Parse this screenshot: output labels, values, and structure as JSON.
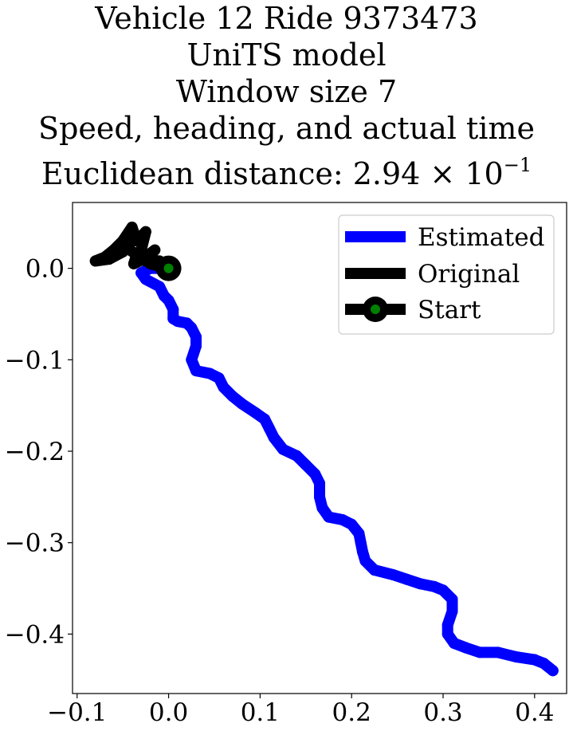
{
  "title": {
    "line1": "Vehicle 12 Ride 9373473",
    "line2": "UniTS model",
    "line3": "Window size 7",
    "line4": "Speed, heading, and actual time",
    "line5_prefix": "Euclidean distance: 2.94 × 10",
    "line5_exponent": "−1"
  },
  "chart_data": {
    "type": "line",
    "xlim": [
      -0.105,
      0.435
    ],
    "ylim": [
      -0.465,
      0.072
    ],
    "xticks": [
      -0.1,
      0.0,
      0.1,
      0.2,
      0.3,
      0.4
    ],
    "xtick_labels": [
      "−0.1",
      "0.0",
      "0.1",
      "0.2",
      "0.3",
      "0.4"
    ],
    "yticks": [
      0.0,
      -0.1,
      -0.2,
      -0.3,
      -0.4
    ],
    "ytick_labels": [
      "0.0",
      "−0.1",
      "−0.2",
      "−0.3",
      "−0.4"
    ],
    "grid": false,
    "legend_placement": "top-right",
    "series": [
      {
        "name": "Estimated",
        "color": "#0000ff",
        "points": [
          [
            0.0,
            0.0
          ],
          [
            -0.02,
            0.0
          ],
          [
            -0.03,
            -0.005
          ],
          [
            -0.025,
            -0.012
          ],
          [
            -0.01,
            -0.02
          ],
          [
            -0.005,
            -0.03
          ],
          [
            0.0,
            -0.035
          ],
          [
            0.005,
            -0.045
          ],
          [
            0.005,
            -0.055
          ],
          [
            0.01,
            -0.058
          ],
          [
            0.02,
            -0.06
          ],
          [
            0.025,
            -0.065
          ],
          [
            0.03,
            -0.075
          ],
          [
            0.03,
            -0.085
          ],
          [
            0.025,
            -0.1
          ],
          [
            0.03,
            -0.112
          ],
          [
            0.045,
            -0.115
          ],
          [
            0.055,
            -0.12
          ],
          [
            0.06,
            -0.13
          ],
          [
            0.07,
            -0.14
          ],
          [
            0.08,
            -0.148
          ],
          [
            0.095,
            -0.158
          ],
          [
            0.105,
            -0.165
          ],
          [
            0.11,
            -0.175
          ],
          [
            0.115,
            -0.185
          ],
          [
            0.125,
            -0.198
          ],
          [
            0.14,
            -0.205
          ],
          [
            0.15,
            -0.215
          ],
          [
            0.16,
            -0.225
          ],
          [
            0.165,
            -0.235
          ],
          [
            0.165,
            -0.25
          ],
          [
            0.168,
            -0.262
          ],
          [
            0.175,
            -0.272
          ],
          [
            0.19,
            -0.275
          ],
          [
            0.2,
            -0.28
          ],
          [
            0.208,
            -0.29
          ],
          [
            0.21,
            -0.3
          ],
          [
            0.212,
            -0.31
          ],
          [
            0.215,
            -0.32
          ],
          [
            0.225,
            -0.33
          ],
          [
            0.245,
            -0.335
          ],
          [
            0.26,
            -0.34
          ],
          [
            0.275,
            -0.345
          ],
          [
            0.29,
            -0.348
          ],
          [
            0.3,
            -0.352
          ],
          [
            0.31,
            -0.362
          ],
          [
            0.31,
            -0.375
          ],
          [
            0.305,
            -0.39
          ],
          [
            0.305,
            -0.4
          ],
          [
            0.312,
            -0.41
          ],
          [
            0.325,
            -0.415
          ],
          [
            0.34,
            -0.42
          ],
          [
            0.36,
            -0.42
          ],
          [
            0.38,
            -0.425
          ],
          [
            0.4,
            -0.428
          ],
          [
            0.41,
            -0.432
          ],
          [
            0.42,
            -0.44
          ]
        ]
      },
      {
        "name": "Original",
        "color": "#000000",
        "points": [
          [
            0.0,
            0.0
          ],
          [
            -0.02,
            0.005
          ],
          [
            -0.03,
            0.02
          ],
          [
            -0.025,
            0.04
          ],
          [
            -0.035,
            0.03
          ],
          [
            -0.04,
            0.045
          ],
          [
            -0.05,
            0.03
          ],
          [
            -0.06,
            0.02
          ],
          [
            -0.07,
            0.012
          ],
          [
            -0.08,
            0.008
          ],
          [
            -0.065,
            0.01
          ],
          [
            -0.05,
            0.018
          ],
          [
            -0.04,
            0.035
          ],
          [
            -0.045,
            0.022
          ],
          [
            -0.035,
            0.015
          ],
          [
            -0.038,
            0.005
          ],
          [
            -0.028,
            0.01
          ],
          [
            -0.015,
            0.02
          ],
          [
            -0.025,
            0.008
          ],
          [
            -0.01,
            0.008
          ],
          [
            0.0,
            0.0
          ]
        ]
      }
    ],
    "start": {
      "name": "Start",
      "x": 0.0,
      "y": 0.0,
      "marker_color": "#000000",
      "center_color": "#008000"
    },
    "legend": [
      "Estimated",
      "Original",
      "Start"
    ]
  }
}
